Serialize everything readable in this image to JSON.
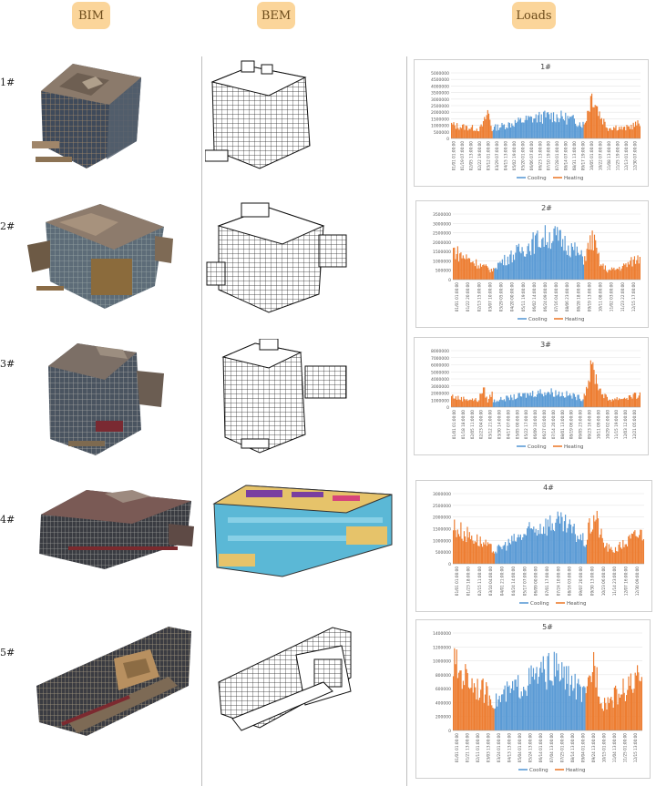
{
  "headers": {
    "bim": "BIM",
    "bem": "BEM",
    "loads": "Loads"
  },
  "rows": [
    {
      "label": "1#"
    },
    {
      "label": "2#"
    },
    {
      "label": "3#"
    },
    {
      "label": "4#"
    },
    {
      "label": "5#"
    }
  ],
  "colors": {
    "cooling": "#5b9bd5",
    "heating": "#ed7d31",
    "header_bg": "#fbd59a"
  },
  "chart_data": [
    {
      "type": "bar",
      "title": "1#",
      "ylim": [
        0,
        5000000
      ],
      "yticks": [
        "5000000",
        "4500000",
        "4000000",
        "3500000",
        "3000000",
        "2500000",
        "2000000",
        "1500000",
        "1000000",
        "500000",
        "0"
      ],
      "xticks": [
        "01/01 01:00:00",
        "01/19 07:00:00",
        "02/05 13:00:00",
        "02/22 19:00:00",
        "03/12 01:00:00",
        "03/29 07:00:00",
        "04/15 13:00:00",
        "05/02 19:00:00",
        "05/20 01:00:00",
        "06/06 07:00:00",
        "06/23 13:00:00",
        "07/10 19:00:00",
        "07/28 01:00:00",
        "08/14 07:00:00",
        "08/31 13:00:00",
        "09/17 19:00:00",
        "10/05 01:00:00",
        "10/22 07:00:00",
        "11/08 13:00:00",
        "11/25 19:00:00",
        "12/13 01:00:00",
        "12/30 07:00:00"
      ],
      "legend": [
        "Cooling",
        "Heating"
      ],
      "series": [
        {
          "name": "Heating",
          "values": [
            1300000,
            1200000,
            1150000,
            1100000,
            1050000,
            1000000,
            950000,
            900000,
            1500000,
            2600000,
            800000
          ]
        },
        {
          "name": "Cooling",
          "values": [
            1000000,
            1200000,
            1450000,
            1700000,
            1900000,
            2050000,
            2150000,
            2000000,
            1750000,
            1350000
          ]
        },
        {
          "name": "Heating",
          "values": [
            1300000,
            4300000,
            2200000,
            1000000,
            1100000,
            900000,
            1200000,
            1400000
          ]
        }
      ]
    },
    {
      "type": "bar",
      "title": "2#",
      "ylim": [
        0,
        3500000
      ],
      "yticks": [
        "3500000",
        "3000000",
        "2500000",
        "2000000",
        "1500000",
        "1000000",
        "500000",
        "0"
      ],
      "xticks": [
        "01/01 01:00:00",
        "01/22 20:00:00",
        "02/13 15:00:00",
        "03/07 10:00:00",
        "03/29 05:00:00",
        "04/20 00:00:00",
        "05/11 19:00:00",
        "06/02 14:00:00",
        "06/24 09:00:00",
        "07/16 04:00:00",
        "08/06 23:00:00",
        "08/28 18:00:00",
        "09/19 13:00:00",
        "10/11 08:00:00",
        "11/02 03:00:00",
        "11/23 22:00:00",
        "12/15 17:00:00"
      ],
      "legend": [
        "Cooling",
        "Heating"
      ],
      "series": [
        {
          "name": "Heating",
          "values": [
            2000000,
            1700000,
            1500000,
            1300000,
            1100000,
            900000,
            750000,
            600000
          ]
        },
        {
          "name": "Cooling",
          "values": [
            900000,
            1300000,
            1700000,
            2100000,
            2500000,
            2800000,
            2900000,
            2500000,
            2000000,
            1400000
          ]
        },
        {
          "name": "Heating",
          "values": [
            1500000,
            2800000,
            1000000,
            600000,
            700000,
            900000,
            1200000,
            1500000
          ]
        }
      ]
    },
    {
      "type": "bar",
      "title": "3#",
      "ylim": [
        0,
        8000000
      ],
      "yticks": [
        "8000000",
        "7000000",
        "6000000",
        "5000000",
        "4000000",
        "3000000",
        "2000000",
        "1000000",
        "0"
      ],
      "xticks": [
        "01/01 01:00:00",
        "01/18 18:00:00",
        "02/05 11:00:00",
        "02/23 04:00:00",
        "03/12 21:00:00",
        "03/30 14:00:00",
        "04/17 07:00:00",
        "05/05 00:00:00",
        "05/22 17:00:00",
        "06/09 10:00:00",
        "06/27 03:00:00",
        "07/14 20:00:00",
        "08/01 13:00:00",
        "08/19 06:00:00",
        "09/05 23:00:00",
        "09/23 16:00:00",
        "10/11 09:00:00",
        "10/29 02:00:00",
        "11/15 19:00:00",
        "12/03 12:00:00",
        "12/21 05:00:00"
      ],
      "legend": [
        "Cooling",
        "Heating"
      ],
      "series": [
        {
          "name": "Heating",
          "values": [
            2000000,
            1700000,
            1500000,
            1500000,
            1400000,
            1300000,
            1200000,
            3400000,
            1100000,
            2500000
          ]
        },
        {
          "name": "Cooling",
          "values": [
            1100000,
            1500000,
            1800000,
            2200000,
            2600000,
            2700000,
            2400000,
            2000000,
            1500000
          ]
        },
        {
          "name": "Heating",
          "values": [
            2200000,
            7200000,
            3000000,
            1300000,
            1500000,
            1600000,
            1900000,
            2100000
          ]
        }
      ]
    },
    {
      "type": "bar",
      "title": "4#",
      "ylim": [
        0,
        3000000
      ],
      "yticks": [
        "3000000",
        "2500000",
        "2000000",
        "1500000",
        "1000000",
        "500000",
        "0"
      ],
      "xticks": [
        "01/01 01:00:00",
        "01/23 18:00:00",
        "02/15 11:00:00",
        "03/10 04:00:00",
        "04/01 21:00:00",
        "04/24 14:00:00",
        "05/17 07:00:00",
        "06/09 00:00:00",
        "07/01 17:00:00",
        "07/24 10:00:00",
        "08/16 03:00:00",
        "09/07 20:00:00",
        "09/30 13:00:00",
        "10/23 06:00:00",
        "11/14 23:00:00",
        "12/07 16:00:00",
        "12/30 09:00:00"
      ],
      "legend": [
        "Cooling",
        "Heating"
      ],
      "series": [
        {
          "name": "Heating",
          "values": [
            2000000,
            1800000,
            1600000,
            1500000,
            1300000,
            1100000,
            900000,
            700000
          ]
        },
        {
          "name": "Cooling",
          "values": [
            700000,
            1000000,
            1300000,
            1600000,
            1900000,
            2100000,
            2200000,
            2000000,
            1600000,
            1100000
          ]
        },
        {
          "name": "Heating",
          "values": [
            1600000,
            2600000,
            1100000,
            700000,
            900000,
            1200000,
            1500000,
            1700000
          ]
        }
      ]
    },
    {
      "type": "bar",
      "title": "5#",
      "ylim": [
        0,
        1400000
      ],
      "yticks": [
        "1400000",
        "1200000",
        "1000000",
        "800000",
        "600000",
        "400000",
        "200000",
        "0"
      ],
      "xticks": [
        "01/01 01:00:00",
        "01/21 13:00:00",
        "02/11 01:00:00",
        "03/03 13:00:00",
        "03/24 01:00:00",
        "04/13 13:00:00",
        "05/04 01:00:00",
        "05/24 13:00:00",
        "06/14 01:00:00",
        "07/04 13:00:00",
        "07/25 01:00:00",
        "08/14 13:00:00",
        "09/04 01:00:00",
        "09/24 13:00:00",
        "10/15 01:00:00",
        "11/04 13:00:00",
        "11/25 01:00:00",
        "12/15 13:00:00"
      ],
      "legend": [
        "Cooling",
        "Heating"
      ],
      "series": [
        {
          "name": "Heating",
          "values": [
            1200000,
            1050000,
            950000,
            850000,
            750000,
            650000,
            550000
          ]
        },
        {
          "name": "Cooling",
          "values": [
            500000,
            650000,
            750000,
            850000,
            950000,
            1050000,
            1100000,
            950000,
            800000,
            600000
          ]
        },
        {
          "name": "Heating",
          "values": [
            600000,
            1250000,
            500000,
            550000,
            650000,
            750000,
            850000,
            950000
          ]
        }
      ]
    }
  ]
}
